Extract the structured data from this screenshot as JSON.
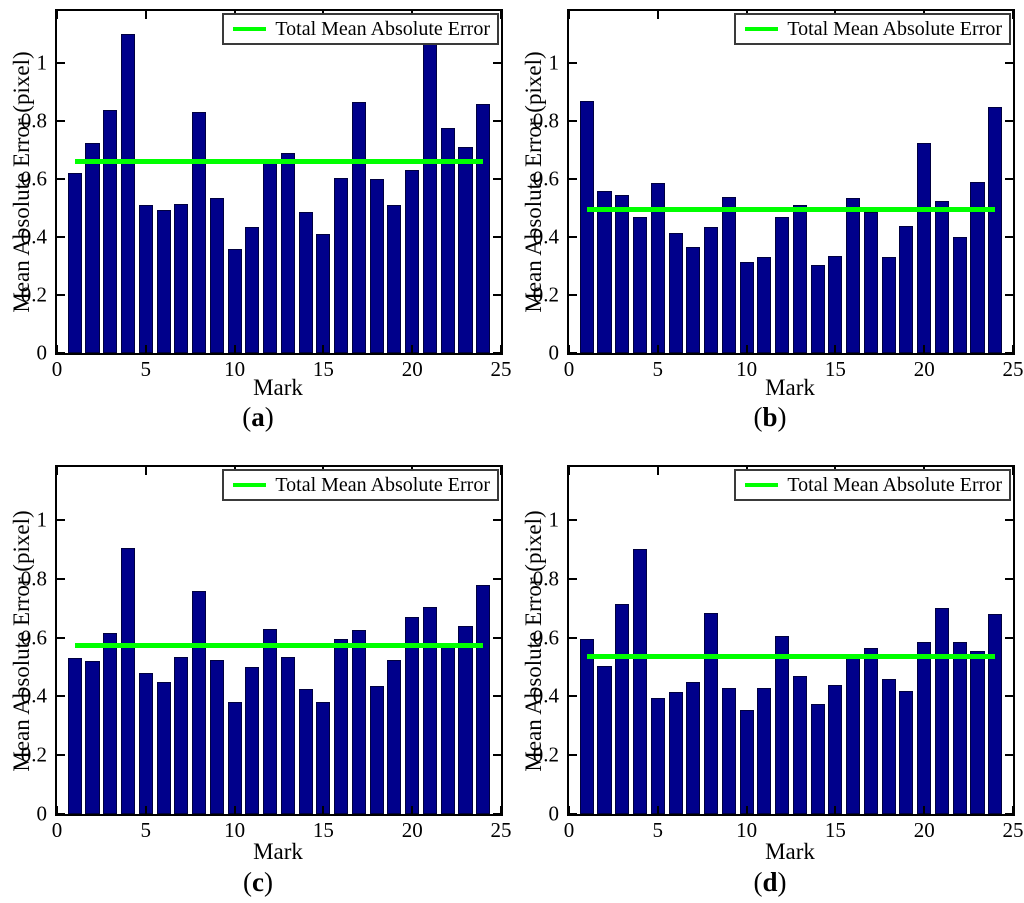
{
  "figure": {
    "ylabel": "Mean Absolute Error (pixel)",
    "xlabel": "Mark",
    "legend_label": "Total Mean Absolute Error",
    "colors": {
      "bar_fill": "#00008B",
      "bar_edge": "#000040",
      "total_line": "#00FF00",
      "axis": "#000000",
      "background": "#FFFFFF"
    }
  },
  "chart_data": [
    {
      "type": "bar",
      "panel": "a",
      "caption": {
        "open": "(",
        "letter": "a",
        "close": ")"
      },
      "xlabel": "Mark",
      "ylabel": "Mean Absolute Error (pixel)",
      "legend": [
        "Total Mean Absolute Error"
      ],
      "legend_position": "top-right",
      "x": [
        1,
        2,
        3,
        4,
        5,
        6,
        7,
        8,
        9,
        10,
        11,
        12,
        13,
        14,
        15,
        16,
        17,
        18,
        19,
        20,
        21,
        22,
        23,
        24
      ],
      "values": [
        0.62,
        0.725,
        0.84,
        1.1,
        0.51,
        0.495,
        0.515,
        0.83,
        0.535,
        0.36,
        0.435,
        0.655,
        0.69,
        0.485,
        0.41,
        0.605,
        0.865,
        0.6,
        0.51,
        0.63,
        1.065,
        0.775,
        0.71,
        0.86
      ],
      "total_mean_absolute_error": 0.66,
      "xlim": [
        0,
        25
      ],
      "ylim": [
        0,
        1.18
      ],
      "xticks": [
        0,
        5,
        10,
        15,
        20,
        25
      ],
      "yticks": [
        0,
        0.2,
        0.4,
        0.6,
        0.8,
        1
      ],
      "grid": false
    },
    {
      "type": "bar",
      "panel": "b",
      "caption": {
        "open": "(",
        "letter": "b",
        "close": ")"
      },
      "xlabel": "Mark",
      "ylabel": "Mean Absolute Error (pixel)",
      "legend": [
        "Total Mean Absolute Error"
      ],
      "legend_position": "top-right",
      "x": [
        1,
        2,
        3,
        4,
        5,
        6,
        7,
        8,
        9,
        10,
        11,
        12,
        13,
        14,
        15,
        16,
        17,
        18,
        19,
        20,
        21,
        22,
        23,
        24
      ],
      "values": [
        0.87,
        0.56,
        0.545,
        0.47,
        0.585,
        0.415,
        0.365,
        0.435,
        0.54,
        0.315,
        0.33,
        0.47,
        0.51,
        0.305,
        0.335,
        0.535,
        0.485,
        0.33,
        0.44,
        0.725,
        0.525,
        0.4,
        0.59,
        0.85
      ],
      "total_mean_absolute_error": 0.497,
      "xlim": [
        0,
        25
      ],
      "ylim": [
        0,
        1.18
      ],
      "xticks": [
        0,
        5,
        10,
        15,
        20,
        25
      ],
      "yticks": [
        0,
        0.2,
        0.4,
        0.6,
        0.8,
        1
      ],
      "grid": false
    },
    {
      "type": "bar",
      "panel": "c",
      "caption": {
        "open": "(",
        "letter": "c",
        "close": ")"
      },
      "xlabel": "Mark",
      "ylabel": "Mean Absolute Error (pixel)",
      "legend": [
        "Total Mean Absolute Error"
      ],
      "legend_position": "top-right",
      "x": [
        1,
        2,
        3,
        4,
        5,
        6,
        7,
        8,
        9,
        10,
        11,
        12,
        13,
        14,
        15,
        16,
        17,
        18,
        19,
        20,
        21,
        22,
        23,
        24
      ],
      "values": [
        0.53,
        0.52,
        0.615,
        0.905,
        0.48,
        0.45,
        0.535,
        0.76,
        0.525,
        0.38,
        0.5,
        0.63,
        0.535,
        0.425,
        0.38,
        0.595,
        0.625,
        0.435,
        0.525,
        0.67,
        0.705,
        0.575,
        0.64,
        0.78
      ],
      "total_mean_absolute_error": 0.572,
      "xlim": [
        0,
        25
      ],
      "ylim": [
        0,
        1.18
      ],
      "xticks": [
        0,
        5,
        10,
        15,
        20,
        25
      ],
      "yticks": [
        0,
        0.2,
        0.4,
        0.6,
        0.8,
        1
      ],
      "grid": false
    },
    {
      "type": "bar",
      "panel": "d",
      "caption": {
        "open": "(",
        "letter": "d",
        "close": ")"
      },
      "xlabel": "Mark",
      "ylabel": "Mean Absolute Error (pixel)",
      "legend": [
        "Total Mean Absolute Error"
      ],
      "legend_position": "top-right",
      "x": [
        1,
        2,
        3,
        4,
        5,
        6,
        7,
        8,
        9,
        10,
        11,
        12,
        13,
        14,
        15,
        16,
        17,
        18,
        19,
        20,
        21,
        22,
        23,
        24
      ],
      "values": [
        0.595,
        0.505,
        0.715,
        0.9,
        0.395,
        0.415,
        0.45,
        0.685,
        0.43,
        0.355,
        0.43,
        0.605,
        0.47,
        0.375,
        0.44,
        0.53,
        0.565,
        0.46,
        0.42,
        0.585,
        0.7,
        0.585,
        0.555,
        0.68
      ],
      "total_mean_absolute_error": 0.535,
      "xlim": [
        0,
        25
      ],
      "ylim": [
        0,
        1.18
      ],
      "xticks": [
        0,
        5,
        10,
        15,
        20,
        25
      ],
      "yticks": [
        0,
        0.2,
        0.4,
        0.6,
        0.8,
        1
      ],
      "grid": false
    }
  ]
}
